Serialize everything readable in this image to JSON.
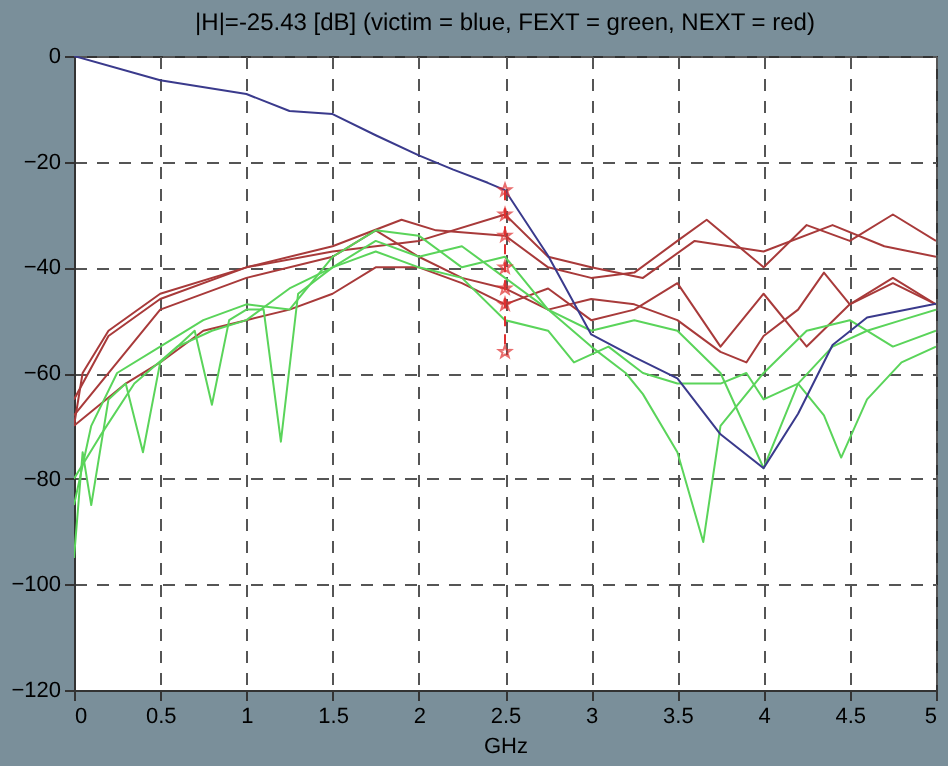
{
  "chart_data": {
    "type": "line",
    "title": "|H|=-25.43 [dB] (victim = blue, FEXT = green, NEXT = red)",
    "xlabel": "GHz",
    "xlim": [
      0,
      5
    ],
    "ylim": [
      -120,
      0
    ],
    "xticks": [
      0,
      0.5,
      1,
      1.5,
      2,
      2.5,
      3,
      3.5,
      4,
      4.5,
      5
    ],
    "yticks": [
      -120,
      -100,
      -80,
      -60,
      -40,
      -20,
      0
    ],
    "grid": true,
    "line_style": "solid",
    "series": [
      {
        "color": "#a83a3a",
        "x": [
          0,
          0.05,
          0.2,
          0.5,
          1,
          1.5,
          1.9,
          2.1,
          2.5,
          2.75,
          3,
          3.25,
          3.5,
          3.67,
          4,
          4.25,
          4.5,
          4.75,
          5
        ],
        "values": [
          -70,
          -60,
          -52,
          -45,
          -40,
          -36,
          -31,
          -33,
          -34,
          -40,
          -42,
          -41,
          -35,
          -31,
          -40,
          -32,
          -35,
          -30,
          -35
        ]
      },
      {
        "color": "#a83a3a",
        "x": [
          0,
          0.2,
          0.5,
          1,
          1.5,
          2,
          2.5,
          2.75,
          3,
          3.3,
          3.6,
          4,
          4.4,
          4.7,
          5
        ],
        "values": [
          -65,
          -53,
          -46,
          -40,
          -37,
          -35,
          -30,
          -38,
          -40,
          -42,
          -35,
          -37,
          -32,
          -36,
          -38
        ]
      },
      {
        "color": "#a83a3a",
        "x": [
          0,
          0.3,
          0.5,
          0.75,
          1,
          1.25,
          1.5,
          1.75,
          2,
          2.25,
          2.5,
          2.75,
          3,
          3.25,
          3.5,
          3.75,
          4,
          4.25,
          4.5,
          4.75,
          5
        ],
        "values": [
          -70,
          -62,
          -58,
          -52,
          -50,
          -48,
          -45,
          -40,
          -40,
          -43,
          -47,
          -44,
          -50,
          -48,
          -43,
          -55,
          -45,
          -55,
          -47,
          -42,
          -47
        ]
      },
      {
        "color": "#a83a3a",
        "x": [
          0,
          0.5,
          1,
          1.5,
          1.75,
          2,
          2.25,
          2.5,
          2.75,
          3,
          3.25,
          3.5,
          3.75,
          3.9,
          4,
          4.2,
          4.35,
          4.5,
          4.75,
          5
        ],
        "values": [
          -68,
          -48,
          -42,
          -38,
          -33,
          -38,
          -42,
          -44,
          -48,
          -46,
          -47,
          -50,
          -56,
          -58,
          -53,
          -48,
          -41,
          -47,
          -43,
          -47
        ]
      },
      {
        "color": "#5ad45a",
        "x": [
          0,
          0.05,
          0.1,
          0.2,
          0.3,
          0.4,
          0.5,
          0.7,
          0.8,
          0.9,
          1,
          1.1,
          1.2,
          1.3,
          1.5,
          1.75,
          2,
          2.25,
          2.5,
          2.75,
          3,
          3.2,
          3.3,
          3.5,
          3.65,
          3.75,
          4,
          4.25,
          4.5,
          4.75,
          5
        ],
        "values": [
          -95,
          -75,
          -85,
          -65,
          -62,
          -75,
          -58,
          -52,
          -66,
          -50,
          -48,
          -48,
          -73,
          -45,
          -40,
          -35,
          -38,
          -36,
          -42,
          -48,
          -55,
          -60,
          -64,
          -75,
          -92,
          -70,
          -60,
          -52,
          -50,
          -55,
          -52
        ]
      },
      {
        "color": "#5ad45a",
        "x": [
          0,
          0.1,
          0.25,
          0.5,
          0.75,
          1,
          1.25,
          1.5,
          1.75,
          2,
          2.25,
          2.5,
          2.75,
          3,
          3.25,
          3.5,
          3.75,
          4,
          4.2,
          4.4,
          4.6,
          4.8,
          5
        ],
        "values": [
          -85,
          -70,
          -60,
          -55,
          -50,
          -47,
          -48,
          -38,
          -33,
          -34,
          -40,
          -38,
          -48,
          -52,
          -50,
          -52,
          -60,
          -78,
          -62,
          -55,
          -52,
          -50,
          -48
        ]
      },
      {
        "color": "#5ad45a",
        "x": [
          0,
          0.15,
          0.35,
          0.6,
          0.8,
          1,
          1.25,
          1.5,
          1.75,
          2,
          2.25,
          2.5,
          2.75,
          2.9,
          3.1,
          3.3,
          3.5,
          3.75,
          3.9,
          4,
          4.2,
          4.35,
          4.45,
          4.6,
          4.8,
          5
        ],
        "values": [
          -80,
          -72,
          -62,
          -55,
          -52,
          -50,
          -44,
          -40,
          -37,
          -40,
          -42,
          -50,
          -52,
          -58,
          -55,
          -60,
          -62,
          -62,
          -60,
          -65,
          -62,
          -68,
          -76,
          -65,
          -58,
          -55
        ]
      },
      {
        "color": "#3a3a8c",
        "x": [
          0,
          0.5,
          1,
          1.25,
          1.5,
          1.75,
          2,
          2.2,
          2.4,
          2.5,
          2.75,
          3,
          3.25,
          3.5,
          3.75,
          4,
          4.2,
          4.4,
          4.6,
          5
        ],
        "values": [
          0,
          -4.6,
          -7.2,
          -10.4,
          -11,
          -15,
          -18.8,
          -21.5,
          -24,
          -25.4,
          -37.8,
          -52.7,
          -57,
          -61,
          -71.6,
          -78,
          -67.7,
          -54.7,
          -49.5,
          -46.9
        ]
      },
      {
        "color": "#e03030",
        "marker": "star",
        "line_style": "dashed",
        "x": [
          2.5,
          2.5,
          2.5,
          2.5,
          2.5,
          2.5,
          2.5
        ],
        "values": [
          -25.4,
          -30,
          -34,
          -40,
          -44,
          -47,
          -56
        ]
      }
    ]
  }
}
